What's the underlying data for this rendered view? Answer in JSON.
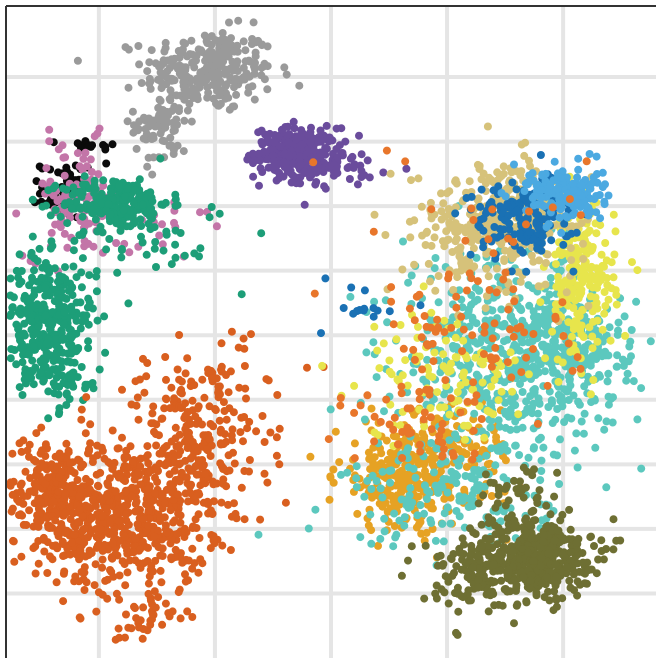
{
  "chart_data": {
    "type": "scatter",
    "title": "",
    "xlabel": "",
    "ylabel": "",
    "grid": true,
    "legend": "none",
    "xlim": [
      -0.8,
      4.8
    ],
    "ylim": [
      0,
      10.1
    ],
    "axis_ticks_labeled": false,
    "colors": {
      "background": "#ffffff",
      "grid": "#e5e5e5",
      "axis": "#333333"
    },
    "series": [
      {
        "color": "#9a9a9a",
        "blobs": [
          {
            "cx": 0.95,
            "cy": 9.1,
            "sx": 0.28,
            "sy": 0.32,
            "n": 260
          },
          {
            "cx": 0.55,
            "cy": 8.3,
            "sx": 0.12,
            "sy": 0.35,
            "n": 80
          }
        ]
      },
      {
        "color": "#6a4c9c",
        "blobs": [
          {
            "cx": 1.7,
            "cy": 7.85,
            "sx": 0.18,
            "sy": 0.18,
            "n": 220
          },
          {
            "cx": 1.9,
            "cy": 7.6,
            "sx": 0.25,
            "sy": 0.15,
            "n": 70
          }
        ]
      },
      {
        "color": "#0a0a0a",
        "blobs": [
          {
            "cx": -0.3,
            "cy": 7.25,
            "sx": 0.1,
            "sy": 0.22,
            "n": 50
          },
          {
            "cx": -0.1,
            "cy": 7.9,
            "sx": 0.12,
            "sy": 0.08,
            "n": 15
          }
        ]
      },
      {
        "color": "#c375a8",
        "blobs": [
          {
            "cx": -0.2,
            "cy": 7.1,
            "sx": 0.22,
            "sy": 0.45,
            "n": 95
          },
          {
            "cx": 0.35,
            "cy": 6.7,
            "sx": 0.3,
            "sy": 0.3,
            "n": 35
          }
        ]
      },
      {
        "color": "#1d9e78",
        "blobs": [
          {
            "cx": 0.15,
            "cy": 7.05,
            "sx": 0.23,
            "sy": 0.2,
            "n": 210
          },
          {
            "cx": -0.45,
            "cy": 5.3,
            "sx": 0.22,
            "sy": 0.45,
            "n": 340
          },
          {
            "cx": -0.35,
            "cy": 4.3,
            "sx": 0.2,
            "sy": 0.25,
            "n": 60
          },
          {
            "cx": 0.4,
            "cy": 6.5,
            "sx": 0.4,
            "sy": 0.3,
            "n": 40
          }
        ]
      },
      {
        "color": "#d95f1f",
        "blobs": [
          {
            "cx": 0.25,
            "cy": 2.2,
            "sx": 0.35,
            "sy": 0.6,
            "n": 560
          },
          {
            "cx": -0.4,
            "cy": 2.5,
            "sx": 0.22,
            "sy": 0.45,
            "n": 240
          },
          {
            "cx": 0.85,
            "cy": 3.2,
            "sx": 0.3,
            "sy": 0.6,
            "n": 200
          },
          {
            "cx": 0.35,
            "cy": 0.6,
            "sx": 0.15,
            "sy": 0.2,
            "n": 30
          },
          {
            "cx": 0.9,
            "cy": 4.2,
            "sx": 0.4,
            "sy": 0.4,
            "n": 60
          }
        ]
      },
      {
        "color": "#e6a224",
        "blobs": [
          {
            "cx": 2.65,
            "cy": 2.8,
            "sx": 0.3,
            "sy": 0.4,
            "n": 270
          },
          {
            "cx": 3.1,
            "cy": 3.2,
            "sx": 0.25,
            "sy": 0.4,
            "n": 90
          }
        ]
      },
      {
        "color": "#5cc8be",
        "blobs": [
          {
            "cx": 3.5,
            "cy": 4.6,
            "sx": 0.45,
            "sy": 0.8,
            "n": 560
          },
          {
            "cx": 4.1,
            "cy": 4.8,
            "sx": 0.25,
            "sy": 0.45,
            "n": 170
          },
          {
            "cx": 3.0,
            "cy": 2.5,
            "sx": 0.45,
            "sy": 0.4,
            "n": 140
          }
        ]
      },
      {
        "color": "#e7e54c",
        "blobs": [
          {
            "cx": 4.15,
            "cy": 5.8,
            "sx": 0.15,
            "sy": 0.6,
            "n": 200
          },
          {
            "cx": 3.0,
            "cy": 4.4,
            "sx": 0.35,
            "sy": 0.5,
            "n": 110
          }
        ]
      },
      {
        "color": "#d6c27a",
        "blobs": [
          {
            "cx": 3.4,
            "cy": 6.7,
            "sx": 0.35,
            "sy": 0.5,
            "n": 270
          },
          {
            "cx": 3.6,
            "cy": 7.0,
            "sx": 0.3,
            "sy": 0.3,
            "n": 90
          }
        ]
      },
      {
        "color": "#1a71b4",
        "blobs": [
          {
            "cx": 3.65,
            "cy": 6.8,
            "sx": 0.22,
            "sy": 0.3,
            "n": 170
          },
          {
            "cx": 2.35,
            "cy": 5.5,
            "sx": 0.25,
            "sy": 0.2,
            "n": 15
          }
        ]
      },
      {
        "color": "#4ba9e1",
        "blobs": [
          {
            "cx": 4.0,
            "cy": 7.2,
            "sx": 0.17,
            "sy": 0.22,
            "n": 150
          }
        ]
      },
      {
        "color": "#e8762b",
        "blobs": [
          {
            "cx": 3.3,
            "cy": 5.3,
            "sx": 0.45,
            "sy": 1.1,
            "n": 110
          },
          {
            "cx": 2.8,
            "cy": 3.6,
            "sx": 0.3,
            "sy": 0.4,
            "n": 45
          }
        ]
      },
      {
        "color": "#6e6f33",
        "blobs": [
          {
            "cx": 3.75,
            "cy": 1.6,
            "sx": 0.25,
            "sy": 0.3,
            "n": 360
          },
          {
            "cx": 3.3,
            "cy": 1.3,
            "sx": 0.3,
            "sy": 0.3,
            "n": 130
          },
          {
            "cx": 3.6,
            "cy": 2.5,
            "sx": 0.2,
            "sy": 0.3,
            "n": 40
          }
        ]
      }
    ]
  }
}
